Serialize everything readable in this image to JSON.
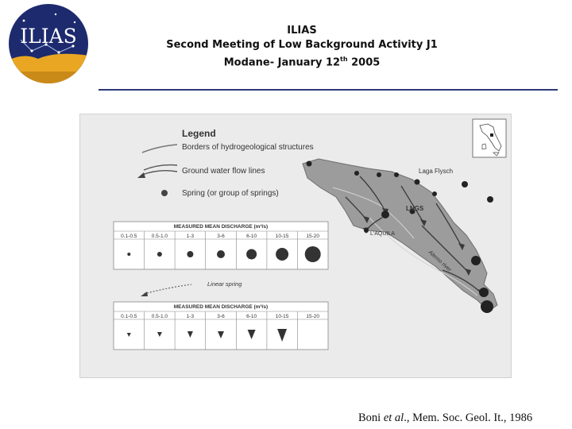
{
  "logo": {
    "text": "ILIAS"
  },
  "header": {
    "line1": "ILIAS",
    "line2": "Second Meeting of Low Background Activity J1",
    "line3_pre": "Modane- January 12",
    "line3_sup": "th",
    "line3_post": " 2005"
  },
  "figure": {
    "legend_title": "Legend",
    "legend_items": [
      "Borders of hydrogeological structures",
      "Ground water flow lines",
      "Spring (or group of springs)"
    ],
    "table1": {
      "title": "MEASURED MEAN DISCHARGE (m³/s)",
      "columns": [
        "0.1-0.5",
        "0.5-1.0",
        "1-3",
        "3-6",
        "6-10",
        "10-15",
        "15-20"
      ]
    },
    "linear_spring_label": "Linear spring",
    "table2": {
      "title": "MEASURED MEAN DISCHARGE (m³/s)",
      "columns": [
        "0.1-0.5",
        "0.5-1.0",
        "1-3",
        "3-6",
        "6-10",
        "10-15",
        "15-20"
      ]
    },
    "map_labels": {
      "laga": "Laga Flysch",
      "lngs": "LNGS",
      "laquila": "L'AQUILA",
      "river": "Aterno river"
    }
  },
  "caption": {
    "author": "Boni ",
    "etal": "et al",
    "rest": "., Mem. Soc. Geol. It., 1986"
  }
}
